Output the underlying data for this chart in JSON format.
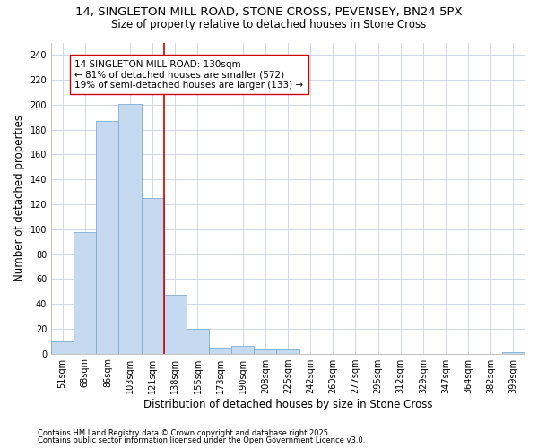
{
  "title_line1": "14, SINGLETON MILL ROAD, STONE CROSS, PEVENSEY, BN24 5PX",
  "title_line2": "Size of property relative to detached houses in Stone Cross",
  "xlabel": "Distribution of detached houses by size in Stone Cross",
  "ylabel": "Number of detached properties",
  "categories": [
    "51sqm",
    "68sqm",
    "86sqm",
    "103sqm",
    "121sqm",
    "138sqm",
    "155sqm",
    "173sqm",
    "190sqm",
    "208sqm",
    "225sqm",
    "242sqm",
    "260sqm",
    "277sqm",
    "295sqm",
    "312sqm",
    "329sqm",
    "347sqm",
    "364sqm",
    "382sqm",
    "399sqm"
  ],
  "values": [
    10,
    98,
    187,
    201,
    125,
    47,
    20,
    5,
    6,
    3,
    3,
    0,
    0,
    0,
    0,
    0,
    0,
    0,
    0,
    0,
    1
  ],
  "bar_color": "#c5d9f0",
  "bar_edge_color": "#7bafd4",
  "vline_x": 4.5,
  "vline_color": "#cc0000",
  "annotation_text": "14 SINGLETON MILL ROAD: 130sqm\n← 81% of detached houses are smaller (572)\n19% of semi-detached houses are larger (133) →",
  "annotation_box_color": "#ffffff",
  "annotation_box_edge": "#cc0000",
  "ylim": [
    0,
    250
  ],
  "yticks": [
    0,
    20,
    40,
    60,
    80,
    100,
    120,
    140,
    160,
    180,
    200,
    220,
    240
  ],
  "plot_bg_color": "#ffffff",
  "fig_bg_color": "#ffffff",
  "grid_color": "#d0d8e8",
  "footer_line1": "Contains HM Land Registry data © Crown copyright and database right 2025.",
  "footer_line2": "Contains public sector information licensed under the Open Government Licence v3.0.",
  "title_fontsize": 9.5,
  "subtitle_fontsize": 8.5,
  "axis_label_fontsize": 8.5,
  "tick_fontsize": 7,
  "annotation_fontsize": 7.5,
  "footer_fontsize": 6
}
